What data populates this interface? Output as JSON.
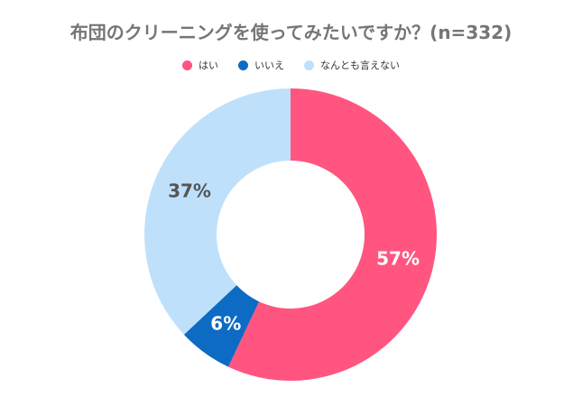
{
  "chart_data": {
    "type": "pie",
    "title": "布団のクリーニングを使ってみたいですか？(n=332)",
    "categories": [
      "はい",
      "いいえ",
      "なんとも言えない"
    ],
    "values": [
      57,
      6,
      37
    ],
    "value_labels": [
      "57%",
      "6%",
      "37%"
    ],
    "colors": [
      "#ff5580",
      "#0d6bc4",
      "#bfe0fb"
    ],
    "label_colors": [
      "#ffffff",
      "#ffffff",
      "#555555"
    ],
    "legend_position": "top",
    "donut": true
  }
}
